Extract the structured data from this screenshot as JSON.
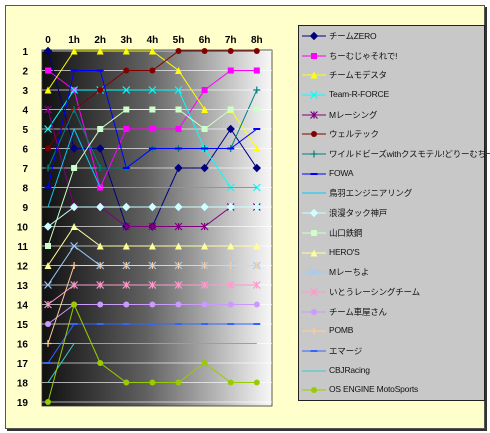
{
  "chart_data": {
    "type": "line",
    "title": "",
    "xlabel": "",
    "ylabel": "",
    "x": [
      "0",
      "1h",
      "2h",
      "3h",
      "4h",
      "5h",
      "6h",
      "7h",
      "8h"
    ],
    "y_ticks": [
      "1",
      "2",
      "3",
      "4",
      "5",
      "6",
      "7",
      "8",
      "9",
      "10",
      "11",
      "12",
      "13",
      "14",
      "15",
      "16",
      "17",
      "18",
      "19"
    ],
    "ylim": [
      1,
      19
    ],
    "y_inverted": true,
    "grid": true,
    "legend_position": "right",
    "series": [
      {
        "name": "チームZERO",
        "color": "#000080",
        "marker": "diamond",
        "values": [
          1,
          6,
          6,
          10,
          10,
          7,
          7,
          5,
          7
        ]
      },
      {
        "name": "ちーむじゃそれで!",
        "color": "#ff00ff",
        "marker": "square",
        "values": [
          2,
          3,
          8,
          5,
          5,
          5,
          3,
          2,
          2
        ]
      },
      {
        "name": "チームモデスタ",
        "color": "#ffff00",
        "marker": "triangle",
        "values": [
          3,
          1,
          1,
          1,
          1,
          2,
          4,
          4,
          6
        ]
      },
      {
        "name": "Team-R-FORCE",
        "color": "#00ffff",
        "marker": "x",
        "values": [
          5,
          3,
          3,
          3,
          3,
          3,
          6,
          8,
          8
        ]
      },
      {
        "name": "Mレーシング",
        "color": "#800080",
        "marker": "star",
        "values": [
          4,
          9,
          9,
          10,
          10,
          10,
          10,
          9,
          9
        ]
      },
      {
        "name": "ウェルテック",
        "color": "#800000",
        "marker": "circle",
        "values": [
          6,
          4,
          3,
          2,
          2,
          1,
          1,
          1,
          1
        ]
      },
      {
        "name": "ワイルドビーズwithクスモテル!どりーむちーむ!",
        "color": "#008080",
        "marker": "plus",
        "values": [
          7,
          4,
          7,
          7,
          6,
          6,
          6,
          6,
          3
        ]
      },
      {
        "name": "FOWA",
        "color": "#0000ff",
        "marker": "dash",
        "values": [
          8,
          2,
          2,
          7,
          6,
          6,
          6,
          6,
          5
        ]
      },
      {
        "name": "鳥羽エンジニアリング",
        "color": "#00ccff",
        "marker": "line",
        "values": [
          9,
          5,
          8,
          8,
          8,
          8,
          8,
          8,
          8
        ]
      },
      {
        "name": "浪漫タック神戸",
        "color": "#ccffff",
        "marker": "diamond",
        "values": [
          10,
          9,
          9,
          9,
          9,
          9,
          9,
          9,
          9
        ]
      },
      {
        "name": "山口鉄鋼",
        "color": "#ccffcc",
        "marker": "square",
        "values": [
          11,
          7,
          5,
          4,
          4,
          4,
          5,
          4,
          4
        ]
      },
      {
        "name": "HERO'S",
        "color": "#ffff99",
        "marker": "triangle",
        "values": [
          12,
          10,
          11,
          11,
          11,
          11,
          11,
          11,
          11
        ]
      },
      {
        "name": "Mレーちよ",
        "color": "#99ccff",
        "marker": "x",
        "values": [
          13,
          11,
          12,
          12,
          12,
          12,
          12,
          12,
          12
        ]
      },
      {
        "name": "いとうレーシングチーム",
        "color": "#ff99cc",
        "marker": "star",
        "values": [
          14,
          13,
          13,
          13,
          13,
          13,
          13,
          13,
          13
        ]
      },
      {
        "name": "チーム車屋さん",
        "color": "#cc99ff",
        "marker": "circle",
        "values": [
          15,
          14,
          14,
          14,
          14,
          14,
          14,
          14,
          14
        ]
      },
      {
        "name": "POMB",
        "color": "#ffcc99",
        "marker": "plus",
        "values": [
          16,
          12,
          12,
          12,
          12,
          12,
          12,
          12,
          12
        ]
      },
      {
        "name": "エマージ",
        "color": "#3366ff",
        "marker": "dash",
        "values": [
          17,
          15,
          15,
          15,
          15,
          15,
          15,
          15,
          15
        ]
      },
      {
        "name": "CBJRacing",
        "color": "#33cccc",
        "marker": "line",
        "values": [
          18,
          16,
          16,
          16,
          16,
          16,
          16,
          16,
          16
        ]
      },
      {
        "name": "OS ENGINE MotoSports",
        "color": "#99cc00",
        "marker": "circle",
        "values": [
          19,
          14,
          17,
          18,
          18,
          18,
          17,
          18,
          18
        ]
      }
    ]
  }
}
